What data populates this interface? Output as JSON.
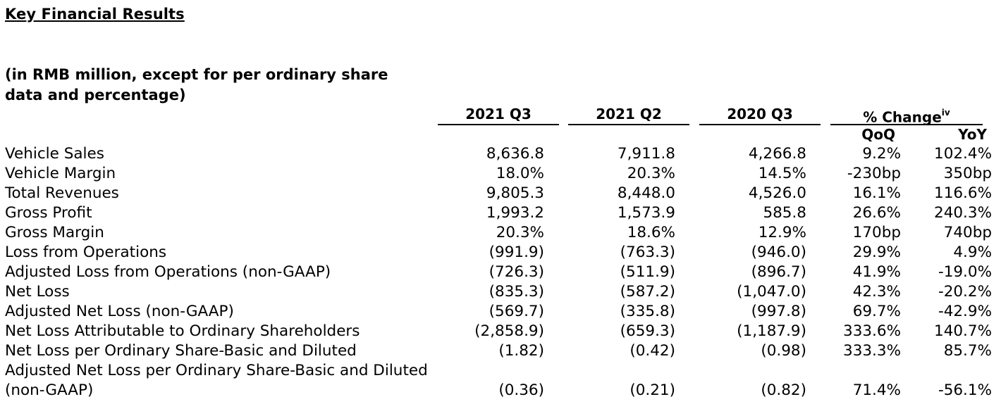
{
  "title": "Key Financial Results",
  "subtitle": "(in RMB million, except for per ordinary share data and percentage)",
  "columns": {
    "q3_2021": "2021 Q3",
    "q2_2021": "2021 Q2",
    "q3_2020": "2020 Q3",
    "change": "% Change",
    "change_note": "iv",
    "qoq": "QoQ",
    "yoy": "YoY"
  },
  "rows": [
    {
      "label": "Vehicle Sales",
      "q3_2021": "8,636.8",
      "q2_2021": "7,911.8",
      "q3_2020": "4,266.8",
      "qoq": "9.2%",
      "yoy": "102.4%"
    },
    {
      "label": "Vehicle Margin",
      "q3_2021": "18.0%",
      "q2_2021": "20.3%",
      "q3_2020": "14.5%",
      "qoq": "-230bp",
      "yoy": "350bp"
    },
    {
      "label": "Total Revenues",
      "q3_2021": "9,805.3",
      "q2_2021": "8,448.0",
      "q3_2020": "4,526.0",
      "qoq": "16.1%",
      "yoy": "116.6%"
    },
    {
      "label": "Gross Profit",
      "q3_2021": "1,993.2",
      "q2_2021": "1,573.9",
      "q3_2020": "585.8",
      "qoq": "26.6%",
      "yoy": "240.3%"
    },
    {
      "label": "Gross Margin",
      "q3_2021": "20.3%",
      "q2_2021": "18.6%",
      "q3_2020": "12.9%",
      "qoq": "170bp",
      "yoy": "740bp"
    },
    {
      "label": "Loss from Operations",
      "q3_2021": "(991.9)",
      "q2_2021": "(763.3)",
      "q3_2020": "(946.0)",
      "qoq": "29.9%",
      "yoy": "4.9%"
    },
    {
      "label": "Adjusted Loss from Operations (non-GAAP)",
      "q3_2021": "(726.3)",
      "q2_2021": "(511.9)",
      "q3_2020": "(896.7)",
      "qoq": "41.9%",
      "yoy": "-19.0%"
    },
    {
      "label": "Net Loss",
      "q3_2021": "(835.3)",
      "q2_2021": "(587.2)",
      "q3_2020": "(1,047.0)",
      "qoq": "42.3%",
      "yoy": "-20.2%"
    },
    {
      "label": "Adjusted Net Loss (non-GAAP)",
      "q3_2021": "(569.7)",
      "q2_2021": "(335.8)",
      "q3_2020": "(997.8)",
      "qoq": "69.7%",
      "yoy": "-42.9%"
    },
    {
      "label": "Net Loss Attributable to Ordinary Shareholders",
      "q3_2021": "(2,858.9)",
      "q2_2021": "(659.3)",
      "q3_2020": "(1,187.9)",
      "qoq": "333.6%",
      "yoy": "140.7%"
    },
    {
      "label": "Net Loss per Ordinary Share-Basic and Diluted",
      "q3_2021": "(1.82)",
      "q2_2021": "(0.42)",
      "q3_2020": "(0.98)",
      "qoq": "333.3%",
      "yoy": "85.7%"
    },
    {
      "label": "Adjusted Net Loss per Ordinary Share-Basic and Diluted (non-GAAP)",
      "q3_2021": "(0.36)",
      "q2_2021": "(0.21)",
      "q3_2020": "(0.82)",
      "qoq": "71.4%",
      "yoy": "-56.1%"
    }
  ]
}
